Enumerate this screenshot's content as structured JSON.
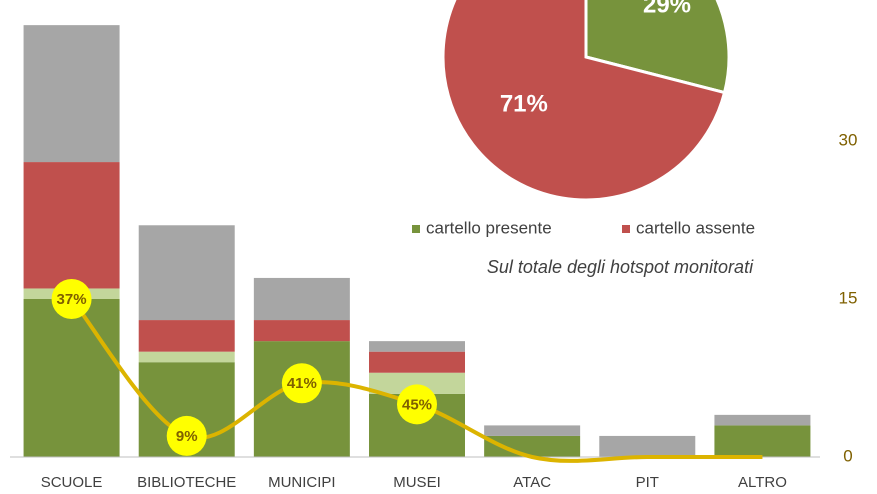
{
  "chart_data": [
    {
      "type": "bar",
      "stacked": true,
      "categories": [
        "SCUOLE",
        "BIBLIOTECHE",
        "MUNICIPI",
        "MUSEI",
        "ATAC",
        "PIT",
        "ALTRO"
      ],
      "series": [
        {
          "color": "#77933c",
          "values": [
            15,
            9,
            11,
            6,
            2,
            0,
            3
          ]
        },
        {
          "color": "#c3d69b",
          "values": [
            1,
            1,
            0,
            2,
            0,
            0,
            0
          ]
        },
        {
          "color": "#c0504d",
          "values": [
            12,
            3,
            2,
            2,
            0,
            0,
            0
          ]
        },
        {
          "color": "#a6a6a6",
          "values": [
            13,
            9,
            4,
            1,
            1,
            2,
            1
          ]
        },
        {
          "type": "line",
          "color": "#dcb400",
          "values": [
            15,
            2,
            7,
            5,
            0,
            0,
            0
          ]
        }
      ],
      "annotations": [
        "37%",
        "9%",
        "41%",
        "45%"
      ],
      "ylim": [
        0,
        45
      ],
      "yticks": [
        0,
        15,
        30
      ]
    },
    {
      "type": "pie",
      "subtitle": "Sul totale degli hotspot monitorati",
      "series": [
        {
          "name": "cartello presente",
          "color": "#77933c",
          "values": [
            29
          ],
          "value_labels": [
            "29%"
          ]
        },
        {
          "name": "cartello assente",
          "color": "#c0504d",
          "values": [
            71
          ],
          "value_labels": [
            "71%"
          ]
        }
      ]
    }
  ]
}
